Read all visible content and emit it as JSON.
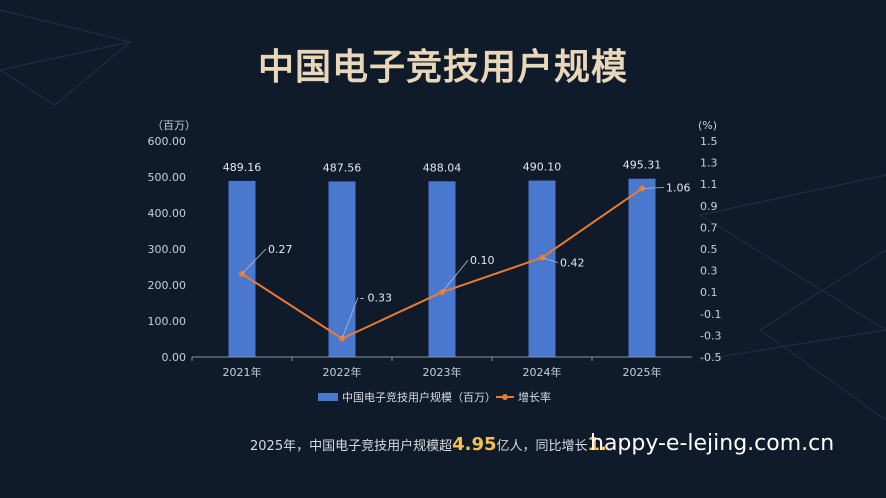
{
  "title": "中国电子竞技用户规模",
  "chart_data": {
    "type": "bar+line",
    "categories": [
      "2021年",
      "2022年",
      "2023年",
      "2024年",
      "2025年"
    ],
    "series": [
      {
        "name": "中国电子竞技用户规模（百万）",
        "kind": "bar",
        "axis": "left",
        "values": [
          489.16,
          487.56,
          488.04,
          490.1,
          495.31
        ],
        "labels": [
          "489.16",
          "487.56",
          "488.04",
          "490.10",
          "495.31"
        ],
        "color": "#4a78cf"
      },
      {
        "name": "增长率",
        "kind": "line",
        "axis": "right",
        "values": [
          0.27,
          -0.33,
          0.1,
          0.42,
          1.06
        ],
        "labels": [
          "0.27",
          "- 0.33",
          "0.10",
          "0.42",
          "1.06"
        ],
        "color": "#ec7b2e"
      }
    ],
    "y_left": {
      "unit": "（百万）",
      "ylim": [
        0,
        600
      ],
      "ticks": [
        "600.00",
        "500.00",
        "400.00",
        "300.00",
        "200.00",
        "100.00",
        "0.00"
      ],
      "tick_values": [
        600,
        500,
        400,
        300,
        200,
        100,
        0
      ]
    },
    "y_right": {
      "unit": "(%)",
      "ylim": [
        -0.5,
        1.5
      ],
      "ticks": [
        "1.5",
        "1.3",
        "1.1",
        "0.9",
        "0.7",
        "0.5",
        "0.3",
        "0.1",
        "-0.1",
        "-0.3",
        "-0.5"
      ],
      "tick_values": [
        1.5,
        1.3,
        1.1,
        0.9,
        0.7,
        0.5,
        0.3,
        0.1,
        -0.1,
        -0.3,
        -0.5
      ]
    },
    "legend_position": "bottom-center",
    "grid": false
  },
  "footnote": {
    "prefix": "2025年，中国电子竞技用户规模超",
    "highlight": "4.95",
    "middle": "亿人，同比增长",
    "highlight2": "1.",
    "suffix": ""
  },
  "watermark": "happy-e-lejing.com.cn",
  "colors": {
    "background": "#0f1a2b",
    "bar": "#4a78cf",
    "line": "#ec7b2e",
    "title": "#e8d7b8",
    "highlight": "#f2c14e"
  }
}
